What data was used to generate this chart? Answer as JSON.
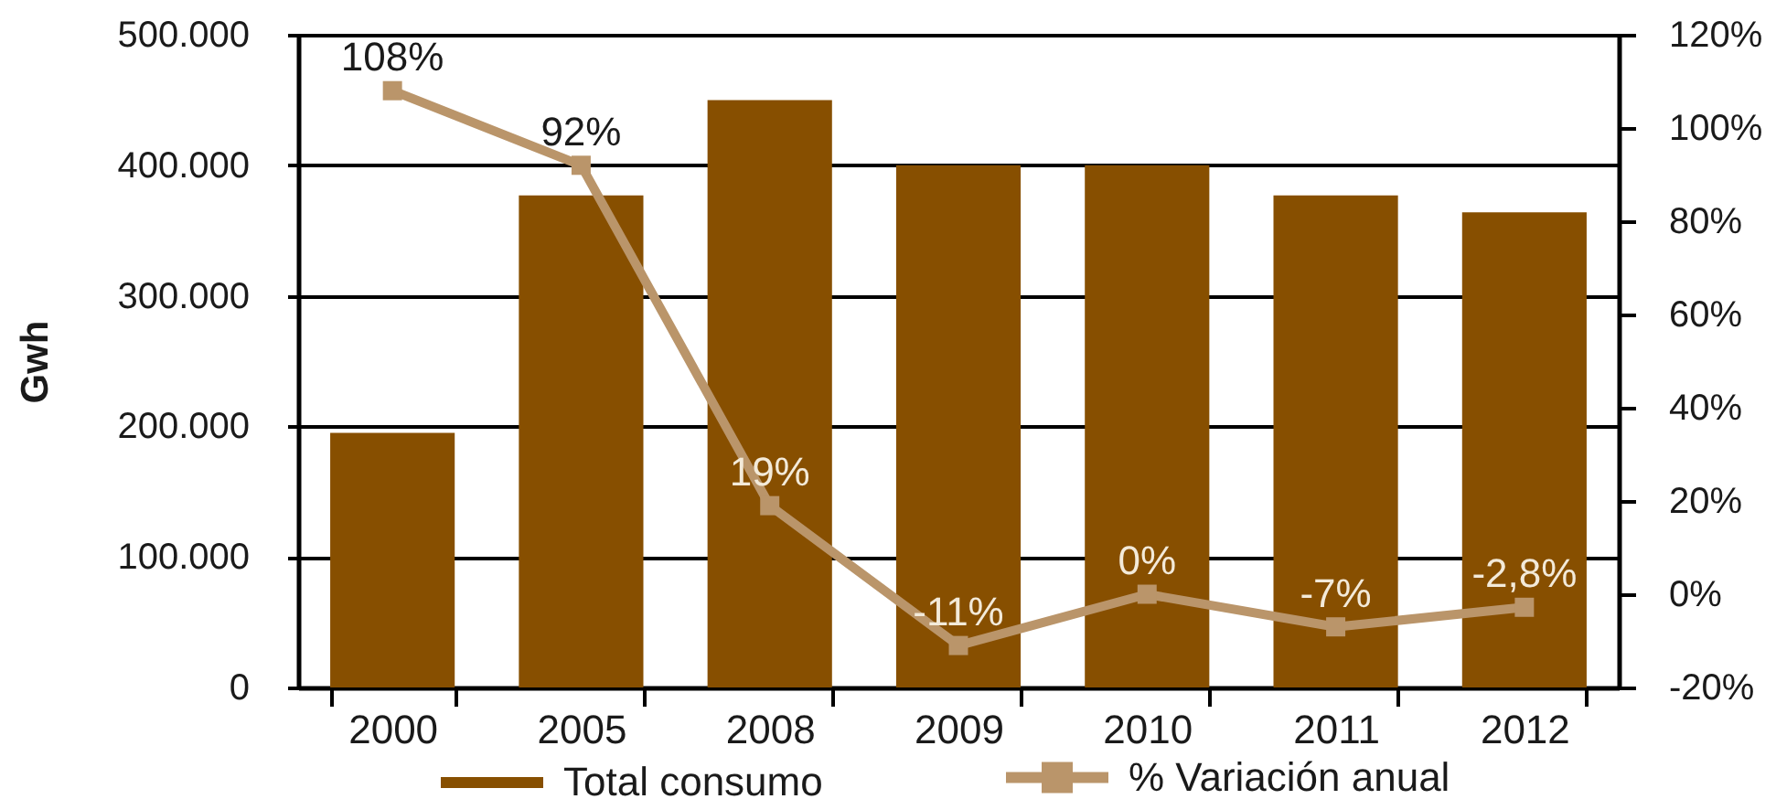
{
  "chart_data": {
    "type": "bar",
    "ylabel": "Gwh",
    "categories": [
      "2000",
      "2005",
      "2008",
      "2009",
      "2010",
      "2011",
      "2012"
    ],
    "series": [
      {
        "name": "Total consumo",
        "color": "#874f00",
        "values": [
          195000,
          377000,
          450000,
          400000,
          400000,
          377000,
          364000
        ]
      },
      {
        "name": "% Variación anual",
        "type": "line",
        "axis": "y2",
        "color": "#ba956a",
        "values": [
          108,
          92,
          19,
          -11,
          0,
          -7,
          -2.8
        ],
        "value_labels": [
          "108%",
          "92%",
          "19%",
          "-11%",
          "0%",
          "-7%",
          "-2,8%"
        ]
      }
    ],
    "ylim": [
      0,
      500000
    ],
    "yticks": [
      0,
      {
        "value": 100000,
        "label": "100.000"
      },
      {
        "value": 200000,
        "label": "200.000"
      },
      {
        "value": 300000,
        "label": "300.000"
      },
      {
        "value": 400000,
        "label": "400.000"
      },
      {
        "value": 500000,
        "label": "500.000"
      }
    ],
    "y2lim": [
      -20,
      120
    ],
    "y2ticks": [
      {
        "value": -20,
        "label": "-20%"
      },
      {
        "value": 0,
        "label": "0%"
      },
      {
        "value": 20,
        "label": "20%"
      },
      {
        "value": 40,
        "label": "40%"
      },
      {
        "value": 60,
        "label": "60%"
      },
      {
        "value": 80,
        "label": "80%"
      },
      {
        "value": 100,
        "label": "100%"
      },
      {
        "value": 120,
        "label": "120%"
      }
    ],
    "grid": "y",
    "legend": "bottom",
    "marker": "square"
  }
}
